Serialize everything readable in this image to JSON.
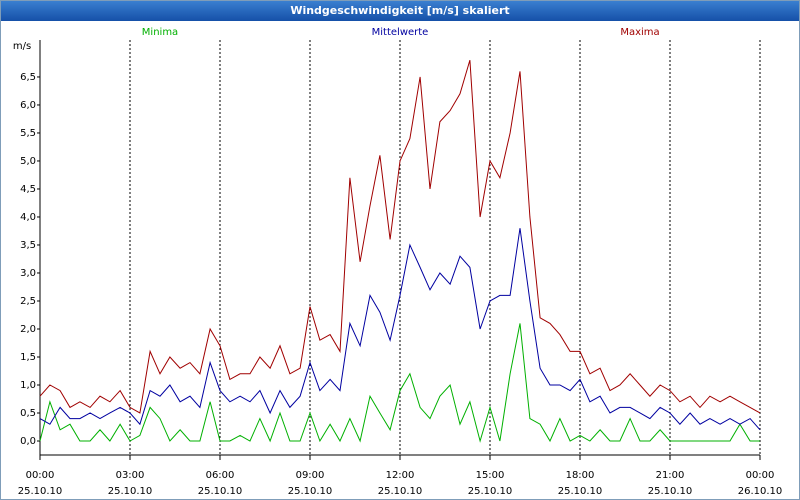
{
  "chart_data": {
    "type": "line",
    "title": "Windgeschwindigkeit [m/s] skaliert",
    "y_unit": "m/s",
    "x": [
      0,
      0.33,
      0.67,
      1,
      1.33,
      1.67,
      2,
      2.33,
      2.67,
      3,
      3.33,
      3.67,
      4,
      4.33,
      4.67,
      5,
      5.33,
      5.67,
      6,
      6.33,
      6.67,
      7,
      7.33,
      7.67,
      8,
      8.33,
      8.67,
      9,
      9.33,
      9.67,
      10,
      10.33,
      10.67,
      11,
      11.33,
      11.67,
      12,
      12.33,
      12.67,
      13,
      13.33,
      13.67,
      14,
      14.33,
      14.67,
      15,
      15.33,
      15.67,
      16,
      16.33,
      16.67,
      17,
      17.33,
      17.67,
      18,
      18.33,
      18.67,
      19,
      19.33,
      19.67,
      20,
      20.33,
      20.67,
      21,
      21.33,
      21.67,
      22,
      22.33,
      22.67,
      23,
      23.33,
      23.67,
      24
    ],
    "series": [
      {
        "name": "Minima",
        "color": "#00b000",
        "values": [
          0.0,
          0.7,
          0.2,
          0.3,
          0.0,
          0.0,
          0.2,
          0.0,
          0.3,
          0.0,
          0.1,
          0.6,
          0.4,
          0.0,
          0.2,
          0.0,
          0.0,
          0.7,
          0.0,
          0.0,
          0.1,
          0.0,
          0.4,
          0.0,
          0.5,
          0.0,
          0.0,
          0.5,
          0.0,
          0.3,
          0.0,
          0.4,
          0.0,
          0.8,
          0.5,
          0.2,
          0.9,
          1.2,
          0.6,
          0.4,
          0.8,
          1.0,
          0.3,
          0.7,
          0.0,
          0.6,
          0.0,
          1.2,
          2.1,
          0.4,
          0.3,
          0.0,
          0.4,
          0.0,
          0.1,
          0.0,
          0.2,
          0.0,
          0.0,
          0.4,
          0.0,
          0.0,
          0.2,
          0.0,
          0.0,
          0.0,
          0.0,
          0.0,
          0.0,
          0.0,
          0.3,
          0.0,
          0.0
        ]
      },
      {
        "name": "Mittelwerte",
        "color": "#0000a0",
        "values": [
          0.4,
          0.3,
          0.6,
          0.4,
          0.4,
          0.5,
          0.4,
          0.5,
          0.6,
          0.5,
          0.3,
          0.9,
          0.8,
          1.0,
          0.7,
          0.8,
          0.6,
          1.4,
          0.9,
          0.7,
          0.8,
          0.7,
          0.9,
          0.5,
          0.9,
          0.6,
          0.8,
          1.4,
          0.9,
          1.1,
          0.9,
          2.1,
          1.7,
          2.6,
          2.3,
          1.8,
          2.6,
          3.5,
          3.1,
          2.7,
          3.0,
          2.8,
          3.3,
          3.1,
          2.0,
          2.5,
          2.6,
          2.6,
          3.8,
          2.5,
          1.3,
          1.0,
          1.0,
          0.9,
          1.1,
          0.7,
          0.8,
          0.5,
          0.6,
          0.6,
          0.5,
          0.4,
          0.6,
          0.5,
          0.3,
          0.5,
          0.3,
          0.4,
          0.3,
          0.4,
          0.3,
          0.4,
          0.2
        ]
      },
      {
        "name": "Maxima",
        "color": "#a00000",
        "values": [
          0.8,
          1.0,
          0.9,
          0.6,
          0.7,
          0.6,
          0.8,
          0.7,
          0.9,
          0.6,
          0.5,
          1.6,
          1.2,
          1.5,
          1.3,
          1.4,
          1.2,
          2.0,
          1.7,
          1.1,
          1.2,
          1.2,
          1.5,
          1.3,
          1.7,
          1.2,
          1.3,
          2.4,
          1.8,
          1.9,
          1.6,
          4.7,
          3.2,
          4.2,
          5.1,
          3.6,
          5.0,
          5.4,
          6.5,
          4.5,
          5.7,
          5.9,
          6.2,
          6.8,
          4.0,
          5.0,
          4.7,
          5.5,
          6.6,
          4.0,
          2.2,
          2.1,
          1.9,
          1.6,
          1.6,
          1.2,
          1.3,
          0.9,
          1.0,
          1.2,
          1.0,
          0.8,
          1.0,
          0.9,
          0.7,
          0.8,
          0.6,
          0.8,
          0.7,
          0.8,
          0.7,
          0.6,
          0.5
        ]
      }
    ],
    "xlim": [
      0,
      24
    ],
    "xticks": [
      {
        "value": 0,
        "label": "00:00"
      },
      {
        "value": 3,
        "label": "03:00"
      },
      {
        "value": 6,
        "label": "06:00"
      },
      {
        "value": 9,
        "label": "09:00"
      },
      {
        "value": 12,
        "label": "12:00"
      },
      {
        "value": 15,
        "label": "15:00"
      },
      {
        "value": 18,
        "label": "18:00"
      },
      {
        "value": 21,
        "label": "21:00"
      },
      {
        "value": 24,
        "label": "00:00"
      }
    ],
    "xtick_dates": [
      "25.10.10",
      "25.10.10",
      "25.10.10",
      "25.10.10",
      "25.10.10",
      "25.10.10",
      "25.10.10",
      "25.10.10",
      "26.10.10"
    ],
    "ylim": [
      -0.25,
      7.16
    ],
    "yticks": [
      {
        "value": 0,
        "label": "0,0"
      },
      {
        "value": 0.5,
        "label": "0,5"
      },
      {
        "value": 1,
        "label": "1,0"
      },
      {
        "value": 1.5,
        "label": "1,5"
      },
      {
        "value": 2,
        "label": "2,0"
      },
      {
        "value": 2.5,
        "label": "2,5"
      },
      {
        "value": 3,
        "label": "3,0"
      },
      {
        "value": 3.5,
        "label": "3,5"
      },
      {
        "value": 4,
        "label": "4,0"
      },
      {
        "value": 4.5,
        "label": "4,5"
      },
      {
        "value": 5,
        "label": "5,0"
      },
      {
        "value": 5.5,
        "label": "5,5"
      },
      {
        "value": 6,
        "label": "6,0"
      },
      {
        "value": 6.5,
        "label": "6,5"
      }
    ],
    "grid": true
  }
}
